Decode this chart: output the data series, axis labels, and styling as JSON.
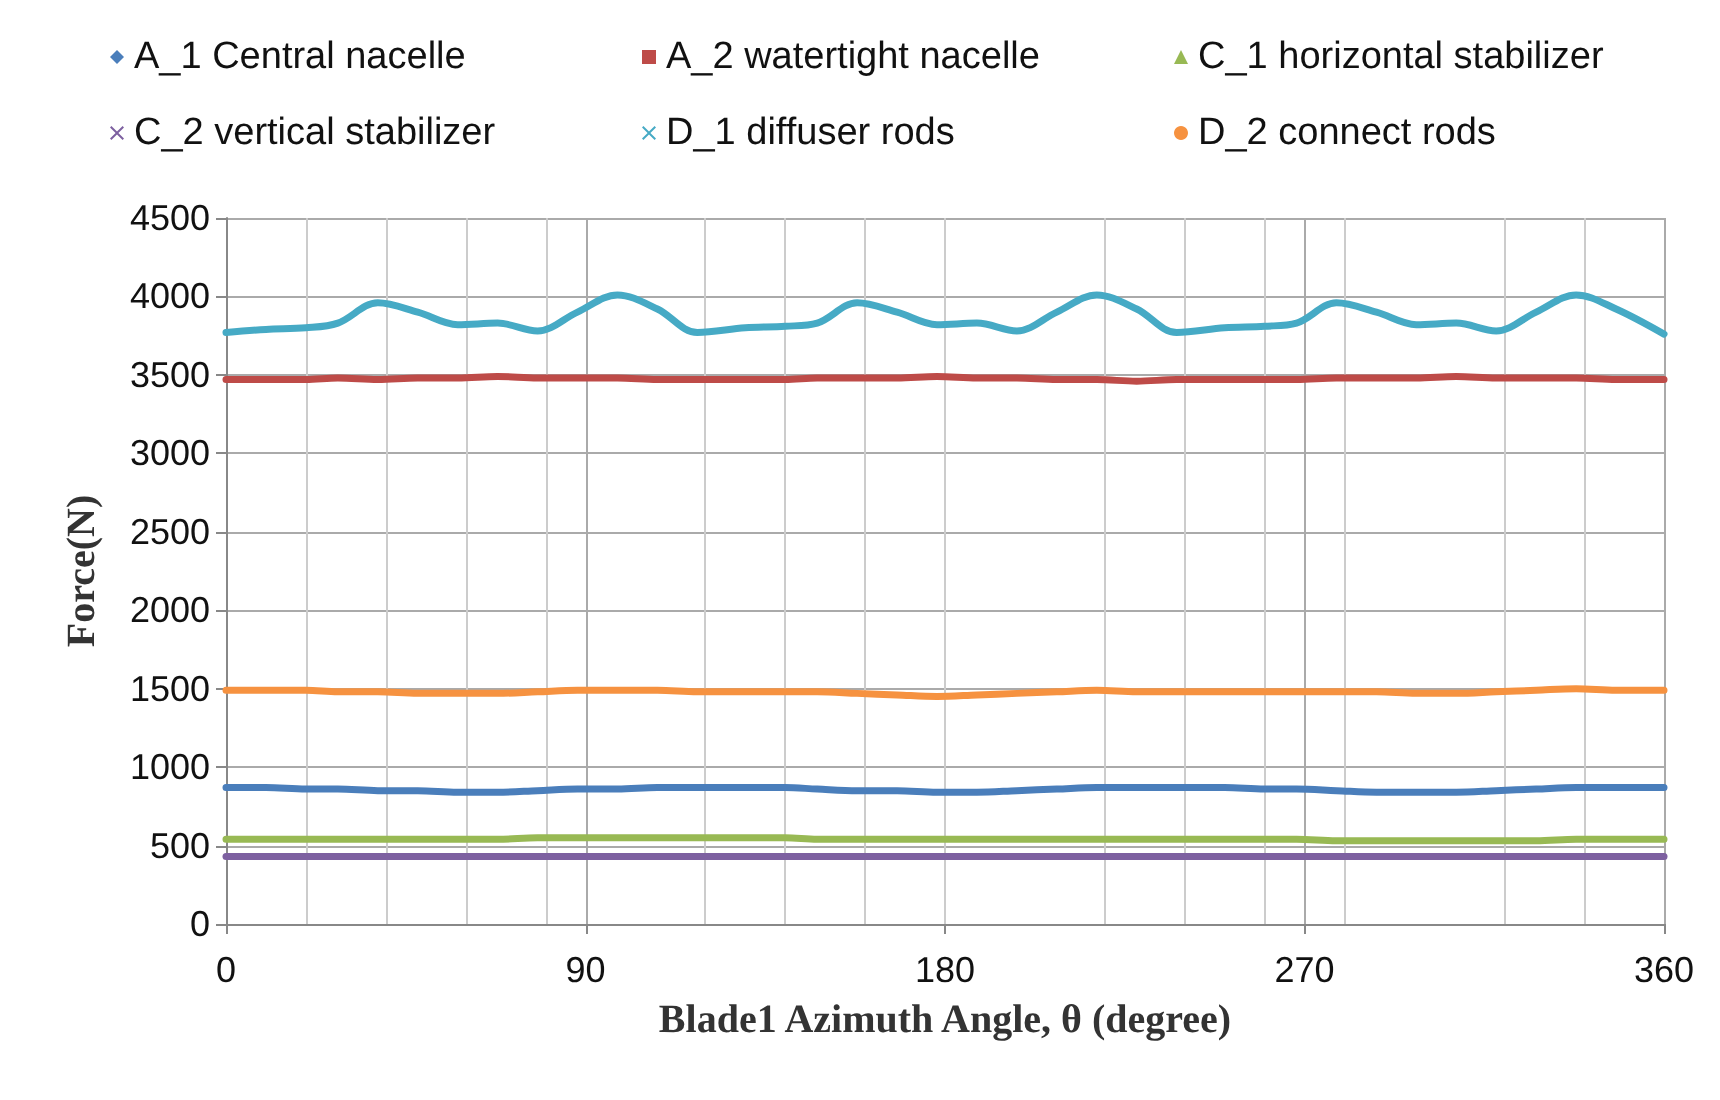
{
  "chart_data": {
    "type": "line",
    "xlabel": "Blade1 Azimuth Angle, θ (degree)",
    "ylabel": "Force(N)",
    "xlim": [
      0,
      360
    ],
    "xticks": [
      0,
      90,
      180,
      270,
      360
    ],
    "ylim": [
      0,
      4500
    ],
    "yticks": [
      0,
      500,
      1000,
      1500,
      2000,
      2500,
      3000,
      3500,
      4000,
      4500
    ],
    "grid": true,
    "legend": "top",
    "marker": "none",
    "line_style": "solid",
    "x": [
      0,
      10,
      20,
      28,
      38,
      48,
      58,
      68,
      78,
      88,
      98,
      108,
      118,
      130,
      140,
      148,
      158,
      168,
      178,
      188,
      198,
      208,
      218,
      228,
      238,
      250,
      260,
      268,
      278,
      288,
      298,
      308,
      318,
      328,
      338,
      348,
      360
    ],
    "series": [
      {
        "name": "A_1 Central nacelle",
        "color": "#4a7ebb",
        "values": [
          870,
          870,
          860,
          860,
          850,
          850,
          840,
          840,
          850,
          860,
          860,
          870,
          870,
          870,
          870,
          860,
          850,
          850,
          840,
          840,
          850,
          860,
          870,
          870,
          870,
          870,
          860,
          860,
          850,
          840,
          840,
          840,
          850,
          860,
          870,
          870,
          870
        ]
      },
      {
        "name": "A_2 watertight nacelle",
        "color": "#be4b48",
        "values": [
          3470,
          3470,
          3470,
          3480,
          3470,
          3480,
          3480,
          3490,
          3480,
          3480,
          3480,
          3470,
          3470,
          3470,
          3470,
          3480,
          3480,
          3480,
          3490,
          3480,
          3480,
          3470,
          3470,
          3460,
          3470,
          3470,
          3470,
          3470,
          3480,
          3480,
          3480,
          3490,
          3480,
          3480,
          3480,
          3470,
          3470
        ]
      },
      {
        "name": "C_1 horizontal stabilizer",
        "color": "#98b954",
        "values": [
          540,
          540,
          540,
          540,
          540,
          540,
          540,
          540,
          550,
          550,
          550,
          550,
          550,
          550,
          550,
          540,
          540,
          540,
          540,
          540,
          540,
          540,
          540,
          540,
          540,
          540,
          540,
          540,
          530,
          530,
          530,
          530,
          530,
          530,
          540,
          540,
          540
        ]
      },
      {
        "name": "C_2 vertical stabilizer",
        "color": "#7d60a0",
        "values": [
          430,
          430,
          430,
          430,
          430,
          430,
          430,
          430,
          430,
          430,
          430,
          430,
          430,
          430,
          430,
          430,
          430,
          430,
          430,
          430,
          430,
          430,
          430,
          430,
          430,
          430,
          430,
          430,
          430,
          430,
          430,
          430,
          430,
          430,
          430,
          430,
          430
        ]
      },
      {
        "name": "D_1 diffuser rods",
        "color": "#46aac5",
        "values": [
          3770,
          3790,
          3800,
          3830,
          3960,
          3900,
          3820,
          3830,
          3780,
          3900,
          4010,
          3920,
          3770,
          3800,
          3810,
          3830,
          3960,
          3900,
          3820,
          3830,
          3780,
          3900,
          4010,
          3920,
          3770,
          3800,
          3810,
          3830,
          3960,
          3900,
          3820,
          3830,
          3780,
          3900,
          4010,
          3920,
          3760
        ]
      },
      {
        "name": "D_2 connect rods",
        "color": "#f69240",
        "values": [
          1490,
          1490,
          1490,
          1480,
          1480,
          1470,
          1470,
          1470,
          1480,
          1490,
          1490,
          1490,
          1480,
          1480,
          1480,
          1480,
          1470,
          1460,
          1450,
          1460,
          1470,
          1480,
          1490,
          1480,
          1480,
          1480,
          1480,
          1480,
          1480,
          1480,
          1470,
          1470,
          1480,
          1490,
          1500,
          1490,
          1490
        ]
      }
    ]
  }
}
